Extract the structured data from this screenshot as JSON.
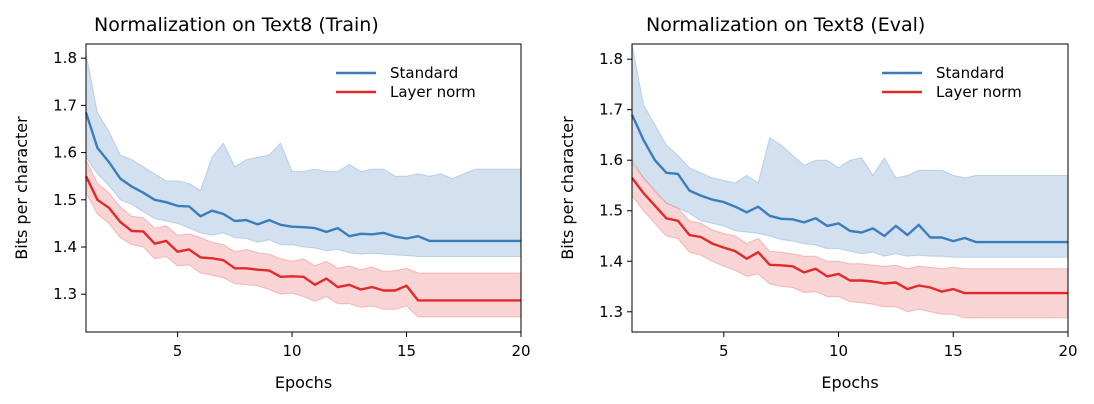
{
  "chart_data": [
    {
      "type": "line",
      "title": "Normalization on Text8 (Train)",
      "xlabel": "Epochs",
      "ylabel": "Bits per character",
      "xlim": [
        1,
        20
      ],
      "ylim": [
        1.22,
        1.83
      ],
      "xticks": [
        "5",
        "10",
        "15",
        "20"
      ],
      "xtick_values": [
        5,
        10,
        15,
        20
      ],
      "yticks": [
        "1.3",
        "1.4",
        "1.5",
        "1.6",
        "1.7",
        "1.8"
      ],
      "ytick_values": [
        1.3,
        1.4,
        1.5,
        1.6,
        1.7,
        1.8
      ],
      "legend_position": "top-right",
      "x": [
        1,
        1.5,
        2,
        2.5,
        3,
        3.5,
        4,
        4.5,
        5,
        5.5,
        6,
        6.5,
        7,
        7.5,
        8,
        8.5,
        9,
        9.5,
        10,
        10.5,
        11,
        11.5,
        12,
        12.5,
        13,
        13.5,
        14,
        14.5,
        15,
        15.5,
        16,
        16.5,
        17,
        17.5,
        18,
        18.5,
        19,
        19.5,
        20
      ],
      "series": [
        {
          "name": "Standard",
          "color": "#3a7dbd",
          "band_color": "#c3d6ea",
          "values": [
            1.685,
            1.61,
            1.58,
            1.545,
            1.528,
            1.515,
            1.5,
            1.495,
            1.487,
            1.486,
            1.465,
            1.477,
            1.47,
            1.455,
            1.457,
            1.448,
            1.457,
            1.447,
            1.443,
            1.442,
            1.44,
            1.432,
            1.44,
            1.423,
            1.428,
            1.427,
            1.43,
            1.422,
            1.418,
            1.423,
            1.413,
            1.413,
            1.413,
            1.413,
            1.413,
            1.413,
            1.413,
            1.413,
            1.413
          ],
          "upper": [
            1.81,
            1.685,
            1.645,
            1.595,
            1.585,
            1.57,
            1.555,
            1.54,
            1.54,
            1.535,
            1.52,
            1.59,
            1.62,
            1.57,
            1.585,
            1.59,
            1.595,
            1.62,
            1.56,
            1.56,
            1.565,
            1.56,
            1.56,
            1.575,
            1.56,
            1.565,
            1.565,
            1.55,
            1.55,
            1.555,
            1.55,
            1.555,
            1.545,
            1.555,
            1.565,
            1.565,
            1.565,
            1.565,
            1.565
          ],
          "lower": [
            1.59,
            1.555,
            1.53,
            1.5,
            1.49,
            1.475,
            1.46,
            1.455,
            1.45,
            1.44,
            1.43,
            1.425,
            1.43,
            1.42,
            1.418,
            1.41,
            1.415,
            1.405,
            1.405,
            1.4,
            1.398,
            1.392,
            1.395,
            1.388,
            1.385,
            1.387,
            1.385,
            1.383,
            1.382,
            1.38,
            1.38,
            1.38,
            1.38,
            1.38,
            1.38,
            1.38,
            1.38,
            1.38,
            1.38
          ]
        },
        {
          "name": "Layer norm",
          "color": "#e32a2a",
          "band_color": "#f6c5c7",
          "values": [
            1.55,
            1.5,
            1.483,
            1.453,
            1.434,
            1.433,
            1.407,
            1.413,
            1.39,
            1.395,
            1.378,
            1.376,
            1.372,
            1.355,
            1.355,
            1.352,
            1.35,
            1.337,
            1.338,
            1.337,
            1.32,
            1.333,
            1.315,
            1.32,
            1.31,
            1.315,
            1.308,
            1.308,
            1.318,
            1.287,
            1.287,
            1.287,
            1.287,
            1.287,
            1.287,
            1.287,
            1.287,
            1.287,
            1.287
          ],
          "upper": [
            1.585,
            1.535,
            1.515,
            1.485,
            1.465,
            1.462,
            1.44,
            1.445,
            1.425,
            1.428,
            1.42,
            1.41,
            1.405,
            1.39,
            1.395,
            1.388,
            1.385,
            1.375,
            1.37,
            1.375,
            1.36,
            1.37,
            1.355,
            1.36,
            1.352,
            1.358,
            1.348,
            1.35,
            1.355,
            1.345,
            1.345,
            1.345,
            1.345,
            1.345,
            1.345,
            1.345,
            1.345,
            1.345,
            1.345
          ],
          "lower": [
            1.515,
            1.47,
            1.45,
            1.42,
            1.405,
            1.4,
            1.375,
            1.38,
            1.36,
            1.362,
            1.345,
            1.34,
            1.335,
            1.322,
            1.32,
            1.318,
            1.31,
            1.3,
            1.302,
            1.295,
            1.285,
            1.295,
            1.28,
            1.28,
            1.272,
            1.275,
            1.268,
            1.268,
            1.275,
            1.252,
            1.252,
            1.252,
            1.252,
            1.252,
            1.252,
            1.252,
            1.252,
            1.252,
            1.252
          ]
        }
      ]
    },
    {
      "type": "line",
      "title": "Normalization on Text8 (Eval)",
      "xlabel": "Epochs",
      "ylabel": "Bits per character",
      "xlim": [
        1,
        20
      ],
      "ylim": [
        1.26,
        1.83
      ],
      "xticks": [
        "5",
        "10",
        "15",
        "20"
      ],
      "xtick_values": [
        5,
        10,
        15,
        20
      ],
      "yticks": [
        "1.3",
        "1.4",
        "1.5",
        "1.6",
        "1.7",
        "1.8"
      ],
      "ytick_values": [
        1.3,
        1.4,
        1.5,
        1.6,
        1.7,
        1.8
      ],
      "legend_position": "top-right",
      "x": [
        1,
        1.5,
        2,
        2.5,
        3,
        3.5,
        4,
        4.5,
        5,
        5.5,
        6,
        6.5,
        7,
        7.5,
        8,
        8.5,
        9,
        9.5,
        10,
        10.5,
        11,
        11.5,
        12,
        12.5,
        13,
        13.5,
        14,
        14.5,
        15,
        15.5,
        16,
        16.5,
        17,
        17.5,
        18,
        18.5,
        19,
        19.5,
        20
      ],
      "series": [
        {
          "name": "Standard",
          "color": "#3a7dbd",
          "band_color": "#c3d6ea",
          "values": [
            1.69,
            1.64,
            1.6,
            1.575,
            1.573,
            1.54,
            1.53,
            1.522,
            1.517,
            1.508,
            1.497,
            1.508,
            1.49,
            1.484,
            1.483,
            1.477,
            1.485,
            1.47,
            1.475,
            1.46,
            1.457,
            1.465,
            1.45,
            1.47,
            1.452,
            1.472,
            1.447,
            1.447,
            1.44,
            1.446,
            1.438,
            1.438,
            1.438,
            1.438,
            1.438,
            1.438,
            1.438,
            1.438,
            1.438
          ],
          "upper": [
            1.83,
            1.71,
            1.67,
            1.63,
            1.61,
            1.585,
            1.575,
            1.565,
            1.56,
            1.555,
            1.57,
            1.555,
            1.645,
            1.63,
            1.61,
            1.59,
            1.6,
            1.6,
            1.585,
            1.6,
            1.605,
            1.57,
            1.605,
            1.565,
            1.57,
            1.58,
            1.58,
            1.58,
            1.57,
            1.565,
            1.57,
            1.57,
            1.57,
            1.57,
            1.57,
            1.57,
            1.57,
            1.57,
            1.57
          ],
          "lower": [
            1.6,
            1.565,
            1.535,
            1.515,
            1.505,
            1.495,
            1.48,
            1.475,
            1.47,
            1.46,
            1.458,
            1.455,
            1.45,
            1.443,
            1.44,
            1.435,
            1.432,
            1.425,
            1.425,
            1.42,
            1.415,
            1.418,
            1.41,
            1.415,
            1.41,
            1.412,
            1.41,
            1.41,
            1.408,
            1.408,
            1.408,
            1.408,
            1.408,
            1.408,
            1.408,
            1.408,
            1.408,
            1.408,
            1.408
          ]
        },
        {
          "name": "Layer norm",
          "color": "#e32a2a",
          "band_color": "#f6c5c7",
          "values": [
            1.565,
            1.535,
            1.51,
            1.485,
            1.48,
            1.452,
            1.448,
            1.435,
            1.427,
            1.42,
            1.405,
            1.418,
            1.393,
            1.392,
            1.39,
            1.378,
            1.385,
            1.37,
            1.375,
            1.362,
            1.362,
            1.36,
            1.356,
            1.358,
            1.345,
            1.352,
            1.348,
            1.34,
            1.345,
            1.337,
            1.337,
            1.337,
            1.337,
            1.337,
            1.337,
            1.337,
            1.337,
            1.337,
            1.337
          ],
          "upper": [
            1.595,
            1.565,
            1.54,
            1.515,
            1.505,
            1.48,
            1.475,
            1.462,
            1.455,
            1.45,
            1.435,
            1.445,
            1.42,
            1.418,
            1.415,
            1.41,
            1.41,
            1.4,
            1.4,
            1.395,
            1.395,
            1.392,
            1.39,
            1.392,
            1.385,
            1.39,
            1.388,
            1.385,
            1.388,
            1.385,
            1.385,
            1.385,
            1.385,
            1.385,
            1.385,
            1.385,
            1.385,
            1.385,
            1.385
          ],
          "lower": [
            1.53,
            1.5,
            1.475,
            1.45,
            1.445,
            1.418,
            1.412,
            1.4,
            1.39,
            1.382,
            1.37,
            1.375,
            1.355,
            1.35,
            1.348,
            1.338,
            1.34,
            1.33,
            1.33,
            1.32,
            1.318,
            1.315,
            1.31,
            1.31,
            1.3,
            1.305,
            1.3,
            1.295,
            1.295,
            1.288,
            1.288,
            1.288,
            1.288,
            1.288,
            1.288,
            1.288,
            1.288,
            1.288,
            1.288
          ]
        }
      ]
    }
  ]
}
